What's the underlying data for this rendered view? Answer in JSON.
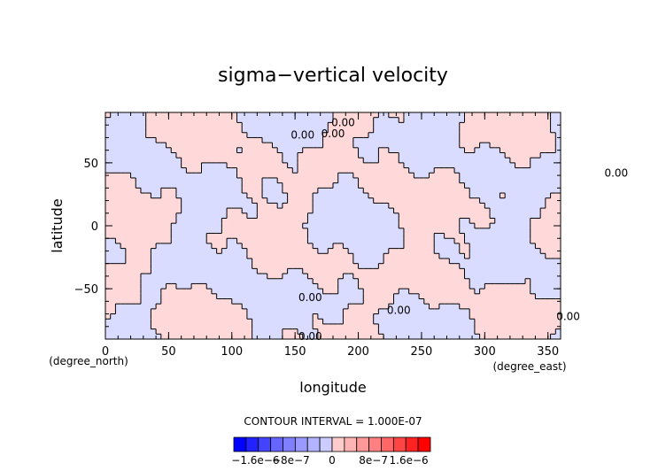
{
  "chart_data": {
    "type": "heatmap",
    "title": "sigma−vertical velocity",
    "xlabel": "longitude",
    "ylabel": "latitude",
    "x_unit_label": "(degree_east)",
    "y_unit_label": "(degree_north)",
    "xlim": [
      0,
      360
    ],
    "ylim": [
      -90,
      90
    ],
    "x_ticks": [
      0,
      50,
      100,
      150,
      200,
      250,
      300,
      350
    ],
    "y_ticks": [
      -50,
      0,
      50
    ],
    "y_tick_labels": [
      "−50",
      "0",
      "50"
    ],
    "grid": false,
    "contour_interval_text": "CONTOUR INTERVAL = 1.000E-07",
    "contour_labels": [
      "0.00",
      "0.00",
      "0.00",
      "0.00",
      "0.00",
      "0.00",
      "0.00",
      "0.00"
    ],
    "colorbar": {
      "tick_labels": [
        "−1.6e−6",
        "−8e−7",
        "0",
        "8e−7",
        "1.6e−6"
      ],
      "colors": [
        "#0000ff",
        "#2222ff",
        "#4444ff",
        "#6666ff",
        "#8080ff",
        "#9999ff",
        "#b3b3ff",
        "#ccccff",
        "#ffcccc",
        "#ffb3b3",
        "#ff9999",
        "#ff8080",
        "#ff6666",
        "#ff4444",
        "#ff2222",
        "#ff0000"
      ]
    },
    "field_colors": {
      "positive": "#ffd9d9",
      "negative": "#d9dcff"
    }
  }
}
